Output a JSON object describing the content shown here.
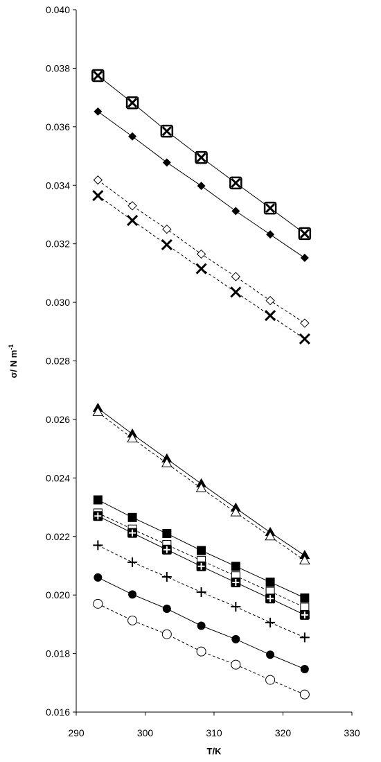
{
  "chart_data": {
    "type": "scatter",
    "title": "",
    "xlabel": "T/K",
    "ylabel": "σ/ N m",
    "ylabel_superscript": "-1",
    "xlim": [
      290,
      330
    ],
    "ylim": [
      0.016,
      0.04
    ],
    "x_ticks": [
      290,
      300,
      310,
      320,
      330
    ],
    "y_ticks": [
      0.016,
      0.018,
      0.02,
      0.022,
      0.024,
      0.026,
      0.028,
      0.03,
      0.032,
      0.034,
      0.036,
      0.038,
      0.04
    ],
    "x_tick_labels": [
      "290",
      "300",
      "310",
      "320",
      "330"
    ],
    "y_tick_labels": [
      "0.016",
      "0.018",
      "0.020",
      "0.022",
      "0.024",
      "0.026",
      "0.028",
      "0.030",
      "0.032",
      "0.034",
      "0.036",
      "0.038",
      "0.040"
    ],
    "grid": false,
    "x": [
      293.15,
      298.15,
      303.15,
      308.15,
      313.15,
      318.15,
      323.15
    ],
    "series": [
      {
        "marker": "boxed-x",
        "line": "solid",
        "values": [
          0.03775,
          0.03682,
          0.03585,
          0.03495,
          0.03408,
          0.03322,
          0.03235
        ]
      },
      {
        "marker": "filled-diamond",
        "line": "solid",
        "values": [
          0.03652,
          0.03567,
          0.03478,
          0.03398,
          0.03312,
          0.03232,
          0.03152
        ]
      },
      {
        "marker": "open-diamond",
        "line": "dashed",
        "values": [
          0.03418,
          0.0333,
          0.0325,
          0.03165,
          0.03088,
          0.03006,
          0.02929
        ]
      },
      {
        "marker": "x",
        "line": "dashed",
        "values": [
          0.03365,
          0.0328,
          0.03197,
          0.03115,
          0.03035,
          0.02955,
          0.02875
        ]
      },
      {
        "marker": "filled-triangle",
        "line": "solid",
        "values": [
          0.02638,
          0.0255,
          0.02465,
          0.0238,
          0.02297,
          0.02214,
          0.02135
        ]
      },
      {
        "marker": "open-triangle",
        "line": "dashed",
        "values": [
          0.02625,
          0.02535,
          0.0245,
          0.02365,
          0.02282,
          0.022,
          0.02118
        ]
      },
      {
        "marker": "filled-square",
        "line": "solid",
        "values": [
          0.02325,
          0.02265,
          0.0221,
          0.02152,
          0.02098,
          0.02044,
          0.0199
        ]
      },
      {
        "marker": "open-square",
        "line": "dashed",
        "values": [
          0.0228,
          0.02225,
          0.02172,
          0.02118,
          0.02065,
          0.02012,
          0.01958
        ]
      },
      {
        "marker": "boxed-plus",
        "line": "solid",
        "values": [
          0.0227,
          0.02212,
          0.02155,
          0.02098,
          0.02043,
          0.01988,
          0.01932
        ]
      },
      {
        "marker": "plus",
        "line": "dashed",
        "values": [
          0.0217,
          0.02112,
          0.02062,
          0.0201,
          0.0196,
          0.01906,
          0.01855
        ]
      },
      {
        "marker": "filled-circle",
        "line": "solid",
        "values": [
          0.0206,
          0.02002,
          0.01953,
          0.01895,
          0.01849,
          0.01796,
          0.01747
        ]
      },
      {
        "marker": "open-circle",
        "line": "dashed",
        "values": [
          0.0197,
          0.01913,
          0.01866,
          0.01807,
          0.01762,
          0.0171,
          0.0166
        ]
      }
    ]
  }
}
